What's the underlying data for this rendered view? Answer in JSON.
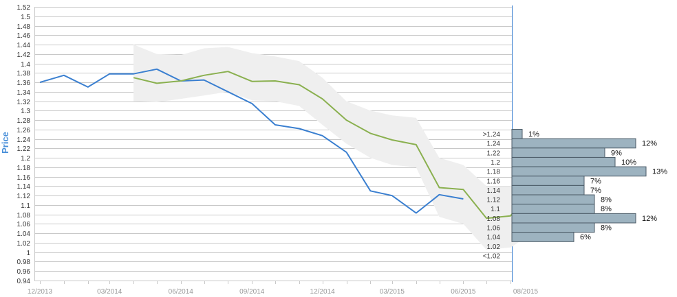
{
  "chart_data": {
    "type": "line",
    "ylabel": "Price",
    "ylim": [
      0.94,
      1.52
    ],
    "y_ticks": [
      "0.94",
      "0.96",
      "0.98",
      "1",
      "1.02",
      "1.04",
      "1.06",
      "1.08",
      "1.1",
      "1.12",
      "1.14",
      "1.16",
      "1.18",
      "1.2",
      "1.22",
      "1.24",
      "1.26",
      "1.28",
      "1.3",
      "1.32",
      "1.34",
      "1.36",
      "1.38",
      "1.4",
      "1.42",
      "1.44",
      "1.46",
      "1.48",
      "1.5",
      "1.52"
    ],
    "x_ticks": [
      "12/2013",
      "03/2014",
      "06/2014",
      "09/2014",
      "12/2014",
      "03/2015",
      "06/2015",
      "08/2015"
    ],
    "grid": true,
    "series": [
      {
        "key": "actual",
        "color": "#3a7fd0",
        "points": [
          [
            "2013-12-01",
            1.36
          ],
          [
            "2014-01-01",
            1.375
          ],
          [
            "2014-02-01",
            1.35
          ],
          [
            "2014-03-01",
            1.378
          ],
          [
            "2014-04-01",
            1.378
          ],
          [
            "2014-05-01",
            1.388
          ],
          [
            "2014-06-01",
            1.363
          ],
          [
            "2014-07-01",
            1.365
          ],
          [
            "2014-08-01",
            1.34
          ],
          [
            "2014-09-01",
            1.315
          ],
          [
            "2014-10-01",
            1.27
          ],
          [
            "2014-11-01",
            1.262
          ],
          [
            "2014-12-01",
            1.247
          ],
          [
            "2015-01-01",
            1.212
          ],
          [
            "2015-02-01",
            1.13
          ],
          [
            "2015-03-01",
            1.12
          ],
          [
            "2015-04-01",
            1.083
          ],
          [
            "2015-05-01",
            1.122
          ],
          [
            "2015-06-01",
            1.113
          ]
        ]
      },
      {
        "key": "forecast",
        "color": "#8ab04f",
        "points": [
          [
            "2014-04-01",
            1.37
          ],
          [
            "2014-05-01",
            1.358
          ],
          [
            "2014-06-01",
            1.363
          ],
          [
            "2014-07-01",
            1.375
          ],
          [
            "2014-08-01",
            1.383
          ],
          [
            "2014-09-01",
            1.362
          ],
          [
            "2014-10-01",
            1.363
          ],
          [
            "2014-11-01",
            1.355
          ],
          [
            "2014-12-01",
            1.325
          ],
          [
            "2015-01-01",
            1.28
          ],
          [
            "2015-02-01",
            1.252
          ],
          [
            "2015-03-01",
            1.238
          ],
          [
            "2015-04-01",
            1.228
          ],
          [
            "2015-05-01",
            1.137
          ],
          [
            "2015-06-01",
            1.133
          ],
          [
            "2015-07-01",
            1.072
          ],
          [
            "2015-08-01",
            1.077
          ],
          [
            "2015-08-20",
            1.12
          ]
        ]
      }
    ],
    "band": {
      "color": "#efefef",
      "points": [
        [
          "2014-04-01",
          1.32,
          1.44
        ],
        [
          "2014-05-01",
          1.318,
          1.42
        ],
        [
          "2014-06-01",
          1.325,
          1.418
        ],
        [
          "2014-07-01",
          1.332,
          1.432
        ],
        [
          "2014-08-01",
          1.34,
          1.435
        ],
        [
          "2014-09-01",
          1.322,
          1.422
        ],
        [
          "2014-10-01",
          1.32,
          1.415
        ],
        [
          "2014-11-01",
          1.31,
          1.405
        ],
        [
          "2014-12-01",
          1.27,
          1.37
        ],
        [
          "2015-01-01",
          1.23,
          1.32
        ],
        [
          "2015-02-01",
          1.2,
          1.3
        ],
        [
          "2015-03-01",
          1.185,
          1.29
        ],
        [
          "2015-04-01",
          1.18,
          1.285
        ],
        [
          "2015-05-01",
          1.075,
          1.2
        ],
        [
          "2015-06-01",
          1.06,
          1.185
        ],
        [
          "2015-07-01",
          1.005,
          1.14
        ],
        [
          "2015-08-01",
          1.01,
          1.14
        ],
        [
          "2015-08-20",
          1.03,
          1.17
        ]
      ]
    },
    "distribution": {
      "type": "bar",
      "orientation": "horizontal",
      "bar_color": "#9db3c0",
      "bins": [
        {
          "label": ">1.24",
          "value": 1,
          "text": "1%"
        },
        {
          "label": "1.24",
          "value": 12,
          "text": "12%"
        },
        {
          "label": "1.22",
          "value": 9,
          "text": "9%"
        },
        {
          "label": "1.2",
          "value": 10,
          "text": "10%"
        },
        {
          "label": "1.18",
          "value": 13,
          "text": "13%"
        },
        {
          "label": "1.16",
          "value": 7,
          "text": "7%"
        },
        {
          "label": "1.14",
          "value": 7,
          "text": "7%"
        },
        {
          "label": "1.12",
          "value": 8,
          "text": "8%"
        },
        {
          "label": "1.1",
          "value": 8,
          "text": "8%"
        },
        {
          "label": "1.08",
          "value": 12,
          "text": "12%"
        },
        {
          "label": "1.06",
          "value": 8,
          "text": "8%"
        },
        {
          "label": "1.04",
          "value": 6,
          "text": "6%"
        },
        {
          "label": "1.02",
          "value": null,
          "text": ""
        },
        {
          "label": "<1.02",
          "value": null,
          "text": ""
        }
      ]
    }
  }
}
